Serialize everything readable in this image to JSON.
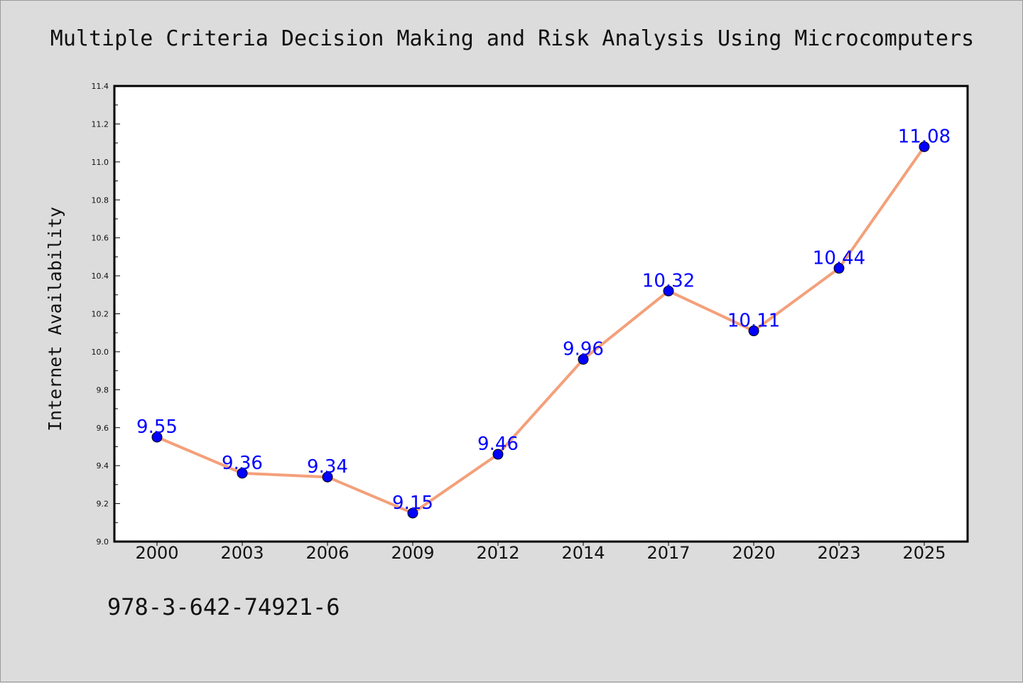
{
  "chart_data": {
    "type": "line",
    "title": "Multiple Criteria Decision Making and Risk Analysis Using Microcomputers",
    "xlabel": "",
    "ylabel": "Internet Availability",
    "categories": [
      "2000",
      "2003",
      "2006",
      "2009",
      "2012",
      "2014",
      "2017",
      "2020",
      "2023",
      "2025"
    ],
    "series": [
      {
        "values": [
          9.55,
          9.36,
          9.34,
          9.15,
          9.46,
          9.96,
          10.32,
          10.11,
          10.44,
          11.08
        ],
        "line_color": "#f4a07a",
        "marker_color": "#0000ff"
      }
    ],
    "data_labels": [
      "9.55",
      "9.36",
      "9.34",
      "9.15",
      "9.46",
      "9.96",
      "10.32",
      "10.11",
      "10.44",
      "11.08"
    ],
    "ylim": [
      9.0,
      11.4
    ],
    "yticks": [
      "9.0",
      "9.2",
      "9.4",
      "9.6",
      "9.8",
      "10.0",
      "10.2",
      "10.4",
      "10.6",
      "10.8",
      "11.0",
      "11.2",
      "11.4"
    ],
    "grid": false,
    "legend": "none"
  },
  "footer": {
    "isbn": "978-3-642-74921-6"
  }
}
